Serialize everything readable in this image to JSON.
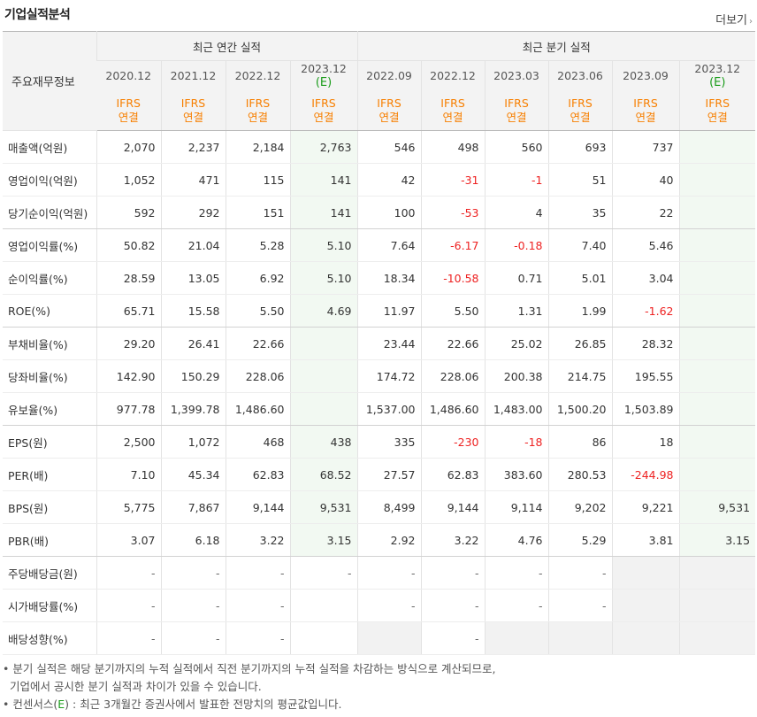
{
  "header": {
    "title": "기업실적분석",
    "more_label": "더보기",
    "more_arrow": "›"
  },
  "table": {
    "corner_label": "주요재무정보",
    "group_annual": "최근 연간 실적",
    "group_quarter": "최근 분기 실적",
    "periods": [
      {
        "label": "2020.12",
        "est": ""
      },
      {
        "label": "2021.12",
        "est": ""
      },
      {
        "label": "2022.12",
        "est": ""
      },
      {
        "label": "2023.12",
        "est": "(E)"
      },
      {
        "label": "2022.09",
        "est": ""
      },
      {
        "label": "2022.12",
        "est": ""
      },
      {
        "label": "2023.03",
        "est": ""
      },
      {
        "label": "2023.06",
        "est": ""
      },
      {
        "label": "2023.09",
        "est": ""
      },
      {
        "label": "2023.12",
        "est": "(E)"
      }
    ],
    "basis": [
      "IFRS 연결",
      "IFRS 연결",
      "IFRS 연결",
      "IFRS 연결",
      "IFRS 연결",
      "IFRS 연결",
      "IFRS 연결",
      "IFRS 연결",
      "IFRS 연결",
      "IFRS 연결"
    ],
    "rows": [
      {
        "label": "매출액(억원)",
        "values": [
          "2,070",
          "2,237",
          "2,184",
          "2,763",
          "546",
          "498",
          "560",
          "693",
          "737",
          ""
        ]
      },
      {
        "label": "영업이익(억원)",
        "values": [
          "1,052",
          "471",
          "115",
          "141",
          "42",
          "-31",
          "-1",
          "51",
          "40",
          ""
        ]
      },
      {
        "label": "당기순이익(억원)",
        "values": [
          "592",
          "292",
          "151",
          "141",
          "100",
          "-53",
          "4",
          "35",
          "22",
          ""
        ]
      },
      {
        "label": "영업이익률(%)",
        "values": [
          "50.82",
          "21.04",
          "5.28",
          "5.10",
          "7.64",
          "-6.17",
          "-0.18",
          "7.40",
          "5.46",
          ""
        ]
      },
      {
        "label": "순이익률(%)",
        "values": [
          "28.59",
          "13.05",
          "6.92",
          "5.10",
          "18.34",
          "-10.58",
          "0.71",
          "5.01",
          "3.04",
          ""
        ]
      },
      {
        "label": "ROE(%)",
        "values": [
          "65.71",
          "15.58",
          "5.50",
          "4.69",
          "11.97",
          "5.50",
          "1.31",
          "1.99",
          "-1.62",
          ""
        ]
      },
      {
        "label": "부채비율(%)",
        "values": [
          "29.20",
          "26.41",
          "22.66",
          "",
          "23.44",
          "22.66",
          "25.02",
          "26.85",
          "28.32",
          ""
        ]
      },
      {
        "label": "당좌비율(%)",
        "values": [
          "142.90",
          "150.29",
          "228.06",
          "",
          "174.72",
          "228.06",
          "200.38",
          "214.75",
          "195.55",
          ""
        ]
      },
      {
        "label": "유보율(%)",
        "values": [
          "977.78",
          "1,399.78",
          "1,486.60",
          "",
          "1,537.00",
          "1,486.60",
          "1,483.00",
          "1,500.20",
          "1,503.89",
          ""
        ]
      },
      {
        "label": "EPS(원)",
        "values": [
          "2,500",
          "1,072",
          "468",
          "438",
          "335",
          "-230",
          "-18",
          "86",
          "18",
          ""
        ]
      },
      {
        "label": "PER(배)",
        "values": [
          "7.10",
          "45.34",
          "62.83",
          "68.52",
          "27.57",
          "62.83",
          "383.60",
          "280.53",
          "-244.98",
          ""
        ]
      },
      {
        "label": "BPS(원)",
        "values": [
          "5,775",
          "7,867",
          "9,144",
          "9,531",
          "8,499",
          "9,144",
          "9,114",
          "9,202",
          "9,221",
          "9,531"
        ]
      },
      {
        "label": "PBR(배)",
        "values": [
          "3.07",
          "6.18",
          "3.22",
          "3.15",
          "2.92",
          "3.22",
          "4.76",
          "5.29",
          "3.81",
          "3.15"
        ]
      },
      {
        "label": "주당배당금(원)",
        "values": [
          "-",
          "-",
          "-",
          "-",
          "-",
          "-",
          "-",
          "-",
          null,
          null
        ]
      },
      {
        "label": "시가배당률(%)",
        "values": [
          "-",
          "-",
          "-",
          "",
          "-",
          "-",
          "-",
          "-",
          null,
          null
        ]
      },
      {
        "label": "배당성향(%)",
        "values": [
          "-",
          "-",
          "-",
          "",
          null,
          "-",
          null,
          null,
          null,
          null
        ]
      }
    ]
  },
  "notes": {
    "line1": "분기 실적은 해당 분기까지의 누적 실적에서 직전 분기까지의 누적 실적을 차감하는 방식으로 계산되므로,",
    "line2": "기업에서 공시한 분기 실적과 차이가 있을 수 있습니다.",
    "line3_pre": "컨센서스(",
    "line3_e": "E",
    "line3_post": ") : 최근 3개월간 증권사에서 발표한 전망치의 평균값입니다."
  }
}
